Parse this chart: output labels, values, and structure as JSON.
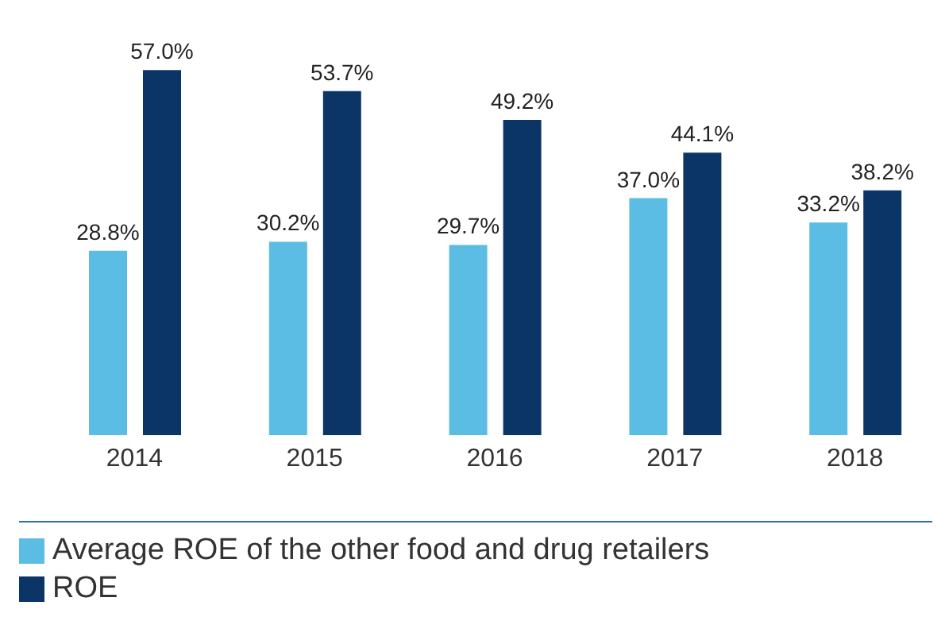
{
  "chart_data": {
    "type": "bar",
    "categories": [
      "2014",
      "2015",
      "2016",
      "2017",
      "2018"
    ],
    "series": [
      {
        "name": "Average ROE of the other food and drug retailers",
        "color": "#5bbde3",
        "values": [
          28.8,
          30.2,
          29.7,
          37.0,
          33.2
        ],
        "value_labels": [
          "28.8%",
          "30.2%",
          "29.7%",
          "37.0%",
          "33.2%"
        ]
      },
      {
        "name": "ROE",
        "color": "#0b3567",
        "values": [
          57.0,
          53.7,
          49.2,
          44.1,
          38.2
        ],
        "value_labels": [
          "57.0%",
          "53.7%",
          "49.2%",
          "44.1%",
          "38.2%"
        ]
      }
    ],
    "tick_labels": "x",
    "legend": "bottom",
    "grid": false
  }
}
